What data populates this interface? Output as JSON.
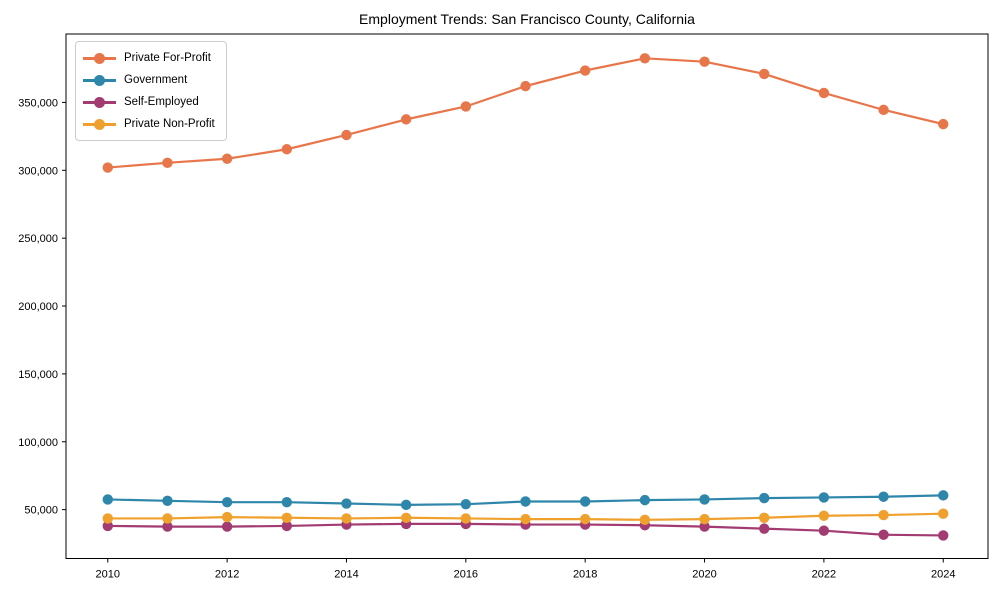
{
  "chart_data": {
    "type": "line",
    "title": "Employment Trends: San Francisco County, California",
    "xlabel": "",
    "ylabel": "",
    "x": [
      2010,
      2011,
      2012,
      2013,
      2014,
      2015,
      2016,
      2017,
      2018,
      2019,
      2020,
      2021,
      2022,
      2023,
      2024
    ],
    "series": [
      {
        "name": "Private For-Profit",
        "color": "#E8764B",
        "values": [
          302000,
          305500,
          308500,
          315500,
          326000,
          337500,
          347000,
          362000,
          373500,
          382500,
          380000,
          371000,
          357000,
          344500,
          334000
        ]
      },
      {
        "name": "Government",
        "color": "#2E86AB",
        "values": [
          57500,
          56500,
          55500,
          55500,
          54500,
          53500,
          54000,
          56000,
          56000,
          57000,
          57500,
          58500,
          59000,
          59500,
          60500
        ]
      },
      {
        "name": "Self-Employed",
        "color": "#A23B72",
        "values": [
          38000,
          37500,
          37500,
          38000,
          39000,
          39500,
          39500,
          39000,
          39000,
          38500,
          37500,
          36000,
          34500,
          31500,
          31000
        ]
      },
      {
        "name": "Private Non-Profit",
        "color": "#F0A02C",
        "values": [
          43500,
          43500,
          44500,
          44000,
          43500,
          44000,
          43500,
          43000,
          43000,
          42500,
          43000,
          44000,
          45500,
          46000,
          47000
        ]
      }
    ],
    "xticks": [
      2010,
      2012,
      2014,
      2016,
      2018,
      2020,
      2022,
      2024
    ],
    "yticks": [
      50000,
      100000,
      150000,
      200000,
      250000,
      300000,
      350000
    ],
    "ytick_labels": [
      "50,000",
      "100,000",
      "150,000",
      "200,000",
      "250,000",
      "300,000",
      "350,000"
    ],
    "xlim": [
      2009.3,
      2024.75
    ],
    "ylim": [
      14000,
      400400
    ],
    "grid": false,
    "legend_position": "upper-left",
    "marker": "circle",
    "axis_color": "#000000",
    "background_color": "#ffffff"
  }
}
